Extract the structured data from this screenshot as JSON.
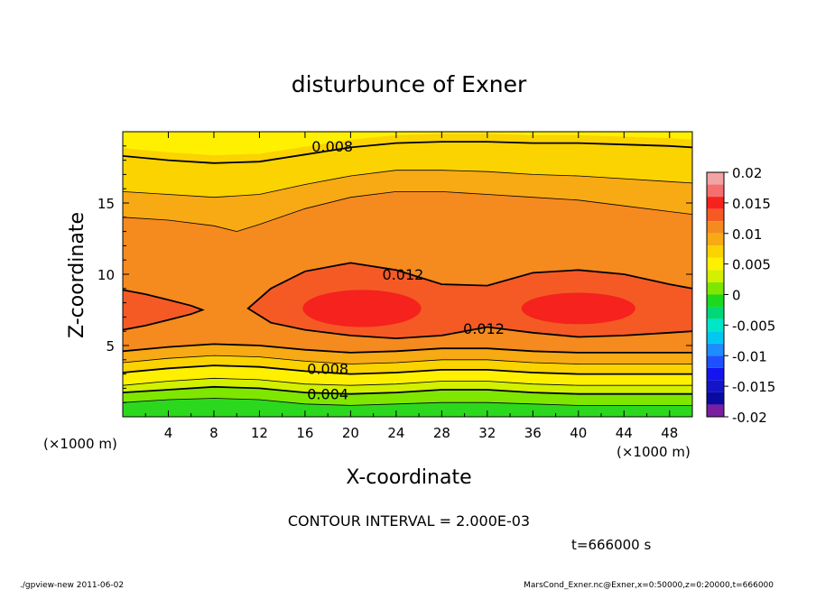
{
  "chart_data": {
    "type": "heatmap",
    "title": "disturbunce of Exner",
    "xlabel": "X-coordinate",
    "ylabel": "Z-coordinate",
    "x_unit": "(×1000 m)",
    "y_unit": "(×1000 m)",
    "xlim": [
      0,
      50
    ],
    "ylim": [
      0,
      20
    ],
    "x_ticks": [
      "4",
      "8",
      "12",
      "16",
      "20",
      "24",
      "28",
      "32",
      "36",
      "40",
      "44",
      "48"
    ],
    "x_tick_values": [
      4,
      8,
      12,
      16,
      20,
      24,
      28,
      32,
      36,
      40,
      44,
      48
    ],
    "y_ticks": [
      "5",
      "10",
      "15"
    ],
    "y_tick_values": [
      5,
      10,
      15
    ],
    "contour_interval_text": "CONTOUR INTERVAL = 2.000E-03",
    "time_text": "t=666000 s",
    "contour_labels": [
      {
        "text": "0.008",
        "x": 18.4,
        "z": 19.0
      },
      {
        "text": "0.012",
        "x": 24.6,
        "z": 10.0
      },
      {
        "text": "0.012",
        "x": 31.7,
        "z": 6.2
      },
      {
        "text": "0.008",
        "x": 18.0,
        "z": 3.4
      },
      {
        "text": "0.004",
        "x": 18.0,
        "z": 1.6
      }
    ],
    "colorbar": {
      "ticks": [
        "0.02",
        "0.015",
        "0.01",
        "0.005",
        "0",
        "-0.005",
        "-0.01",
        "-0.015",
        "-0.02"
      ],
      "tick_values": [
        0.02,
        0.015,
        0.01,
        0.005,
        0,
        -0.005,
        -0.01,
        -0.015,
        -0.02
      ],
      "range": [
        -0.02,
        0.02
      ],
      "levels": [
        {
          "lo": 0.018,
          "hi": 0.02,
          "color": "#f2a3a3"
        },
        {
          "lo": 0.016,
          "hi": 0.018,
          "color": "#f56f6f"
        },
        {
          "lo": 0.014,
          "hi": 0.016,
          "color": "#f5221d"
        },
        {
          "lo": 0.012,
          "hi": 0.014,
          "color": "#f55a25"
        },
        {
          "lo": 0.01,
          "hi": 0.012,
          "color": "#f58a1e"
        },
        {
          "lo": 0.008,
          "hi": 0.01,
          "color": "#f7aa14"
        },
        {
          "lo": 0.006,
          "hi": 0.008,
          "color": "#fad300"
        },
        {
          "lo": 0.004,
          "hi": 0.006,
          "color": "#fff000"
        },
        {
          "lo": 0.002,
          "hi": 0.004,
          "color": "#d2f000"
        },
        {
          "lo": 0.0,
          "hi": 0.002,
          "color": "#7fe600"
        },
        {
          "lo": -0.002,
          "hi": 0.0,
          "color": "#1ed81e"
        },
        {
          "lo": -0.004,
          "hi": -0.002,
          "color": "#00d878"
        },
        {
          "lo": -0.006,
          "hi": -0.004,
          "color": "#00e6c8"
        },
        {
          "lo": -0.008,
          "hi": -0.006,
          "color": "#00c8f0"
        },
        {
          "lo": -0.01,
          "hi": -0.008,
          "color": "#1e8cff"
        },
        {
          "lo": -0.012,
          "hi": -0.01,
          "color": "#1e50ff"
        },
        {
          "lo": -0.014,
          "hi": -0.012,
          "color": "#1414f0"
        },
        {
          "lo": -0.016,
          "hi": -0.014,
          "color": "#1414c8"
        },
        {
          "lo": -0.018,
          "hi": -0.016,
          "color": "#0a0aa0"
        },
        {
          "lo": -0.02,
          "hi": -0.018,
          "color": "#7a1ea0"
        }
      ]
    },
    "field_bands": [
      {
        "level": "0.0020-0.0035",
        "color": "#2cd81e",
        "top": [
          [
            0,
            1.0
          ],
          [
            4,
            1.2
          ],
          [
            8,
            1.3
          ],
          [
            12,
            1.2
          ],
          [
            16,
            0.9
          ],
          [
            20,
            0.8
          ],
          [
            24,
            0.9
          ],
          [
            28,
            1.0
          ],
          [
            32,
            1.0
          ],
          [
            36,
            0.9
          ],
          [
            40,
            0.8
          ],
          [
            44,
            0.8
          ],
          [
            48,
            0.8
          ],
          [
            50,
            0.8
          ]
        ]
      },
      {
        "level": "0.0035-0.004",
        "color": "#7fe600",
        "top": [
          [
            0,
            1.7
          ],
          [
            4,
            1.9
          ],
          [
            8,
            2.1
          ],
          [
            12,
            2.0
          ],
          [
            16,
            1.7
          ],
          [
            20,
            1.6
          ],
          [
            24,
            1.7
          ],
          [
            28,
            1.9
          ],
          [
            32,
            1.9
          ],
          [
            36,
            1.7
          ],
          [
            40,
            1.6
          ],
          [
            44,
            1.6
          ],
          [
            48,
            1.6
          ],
          [
            50,
            1.6
          ]
        ]
      },
      {
        "level": "0.004-0.006",
        "color": "#d2f000",
        "top": [
          [
            0,
            2.2
          ],
          [
            4,
            2.5
          ],
          [
            8,
            2.7
          ],
          [
            12,
            2.6
          ],
          [
            16,
            2.3
          ],
          [
            20,
            2.2
          ],
          [
            24,
            2.3
          ],
          [
            28,
            2.5
          ],
          [
            32,
            2.5
          ],
          [
            36,
            2.3
          ],
          [
            40,
            2.2
          ],
          [
            44,
            2.2
          ],
          [
            48,
            2.2
          ],
          [
            50,
            2.2
          ]
        ]
      },
      {
        "level": "0.006-0.007",
        "color": "#fff000",
        "top": [
          [
            0,
            3.1
          ],
          [
            4,
            3.4
          ],
          [
            8,
            3.6
          ],
          [
            12,
            3.5
          ],
          [
            16,
            3.2
          ],
          [
            20,
            3.0
          ],
          [
            24,
            3.1
          ],
          [
            28,
            3.3
          ],
          [
            32,
            3.3
          ],
          [
            36,
            3.1
          ],
          [
            40,
            3.0
          ],
          [
            44,
            3.0
          ],
          [
            48,
            3.0
          ],
          [
            50,
            3.0
          ]
        ]
      },
      {
        "level": "0.007-0.008",
        "color": "#fad300",
        "top": [
          [
            0,
            3.8
          ],
          [
            4,
            4.1
          ],
          [
            8,
            4.3
          ],
          [
            12,
            4.2
          ],
          [
            16,
            3.9
          ],
          [
            20,
            3.7
          ],
          [
            24,
            3.8
          ],
          [
            28,
            4.0
          ],
          [
            32,
            4.0
          ],
          [
            36,
            3.8
          ],
          [
            40,
            3.7
          ],
          [
            44,
            3.7
          ],
          [
            48,
            3.7
          ],
          [
            50,
            3.7
          ]
        ]
      },
      {
        "level": "0.008-0.010",
        "color": "#f7aa14",
        "top": [
          [
            0,
            4.6
          ],
          [
            4,
            4.9
          ],
          [
            8,
            5.1
          ],
          [
            12,
            5.0
          ],
          [
            16,
            4.7
          ],
          [
            20,
            4.5
          ],
          [
            24,
            4.6
          ],
          [
            28,
            4.8
          ],
          [
            32,
            4.8
          ],
          [
            36,
            4.6
          ],
          [
            40,
            4.5
          ],
          [
            44,
            4.5
          ],
          [
            48,
            4.5
          ],
          [
            50,
            4.5
          ]
        ]
      },
      {
        "level": "0.010-0.012",
        "color": "#f58a1e",
        "top": [
          [
            0,
            19.0
          ],
          [
            50,
            19.0
          ]
        ]
      },
      {
        "level": "0.008-0.010",
        "color": "#f7aa14",
        "top": [
          [
            0,
            20
          ],
          [
            50,
            20
          ]
        ]
      }
    ],
    "upper_bands": [
      {
        "color": "#f7aa14",
        "bottom": [
          [
            0,
            14.0
          ],
          [
            4,
            13.8
          ],
          [
            8,
            13.4
          ],
          [
            10,
            13.0
          ],
          [
            12,
            13.5
          ],
          [
            16,
            14.6
          ],
          [
            20,
            15.4
          ],
          [
            24,
            15.8
          ],
          [
            28,
            15.8
          ],
          [
            32,
            15.6
          ],
          [
            36,
            15.4
          ],
          [
            40,
            15.2
          ],
          [
            44,
            14.8
          ],
          [
            48,
            14.4
          ],
          [
            50,
            14.2
          ]
        ]
      },
      {
        "color": "#fad300",
        "bottom": [
          [
            0,
            15.8
          ],
          [
            4,
            15.6
          ],
          [
            8,
            15.4
          ],
          [
            12,
            15.6
          ],
          [
            16,
            16.3
          ],
          [
            20,
            16.9
          ],
          [
            24,
            17.3
          ],
          [
            28,
            17.3
          ],
          [
            32,
            17.2
          ],
          [
            36,
            17.0
          ],
          [
            40,
            16.9
          ],
          [
            44,
            16.7
          ],
          [
            48,
            16.5
          ],
          [
            50,
            16.4
          ]
        ]
      },
      {
        "color": "#fff000",
        "bottom": [
          [
            0,
            18.3
          ],
          [
            4,
            18.0
          ],
          [
            8,
            17.8
          ],
          [
            12,
            17.9
          ],
          [
            16,
            18.4
          ],
          [
            20,
            18.9
          ],
          [
            24,
            19.2
          ],
          [
            28,
            19.3
          ],
          [
            32,
            19.3
          ],
          [
            36,
            19.2
          ],
          [
            40,
            19.2
          ],
          [
            44,
            19.1
          ],
          [
            48,
            19.0
          ],
          [
            50,
            18.9
          ]
        ]
      },
      {
        "color": "#fff000",
        "bottom": [
          [
            0,
            20
          ],
          [
            50,
            20
          ]
        ]
      }
    ],
    "core_band": {
      "color": "#f55a25",
      "top": [
        [
          0,
          8.9
        ],
        [
          2,
          8.6
        ],
        [
          4,
          8.2
        ],
        [
          6,
          7.8
        ],
        [
          7,
          7.5
        ],
        [
          6,
          7.2
        ],
        [
          4,
          6.8
        ],
        [
          2,
          6.4
        ],
        [
          0,
          6.1
        ]
      ],
      "right": [
        [
          50,
          9.0
        ],
        [
          48,
          9.3
        ],
        [
          44,
          10.0
        ],
        [
          40,
          10.3
        ],
        [
          36,
          10.1
        ],
        [
          32,
          9.2
        ],
        [
          28,
          9.3
        ],
        [
          24,
          10.3
        ],
        [
          20,
          10.8
        ],
        [
          16,
          10.2
        ],
        [
          13,
          9.0
        ],
        [
          11,
          7.6
        ],
        [
          13,
          6.6
        ],
        [
          16,
          6.1
        ],
        [
          20,
          5.7
        ],
        [
          24,
          5.5
        ],
        [
          28,
          5.7
        ],
        [
          32,
          6.3
        ],
        [
          36,
          5.9
        ],
        [
          40,
          5.6
        ],
        [
          44,
          5.7
        ],
        [
          48,
          5.9
        ],
        [
          50,
          6.0
        ]
      ]
    },
    "inner_cores": [
      {
        "color": "#f5221d",
        "cx": 21,
        "cz": 7.6,
        "rx": 5.2,
        "rz": 1.3
      },
      {
        "color": "#f5221d",
        "cx": 40,
        "cz": 7.6,
        "rx": 5.0,
        "rz": 1.1
      }
    ]
  },
  "footer": {
    "left_text": "./gpview-new  2011-06-02",
    "right_text": "MarsCond_Exner.nc@Exner,x=0:50000,z=0:20000,t=666000"
  }
}
